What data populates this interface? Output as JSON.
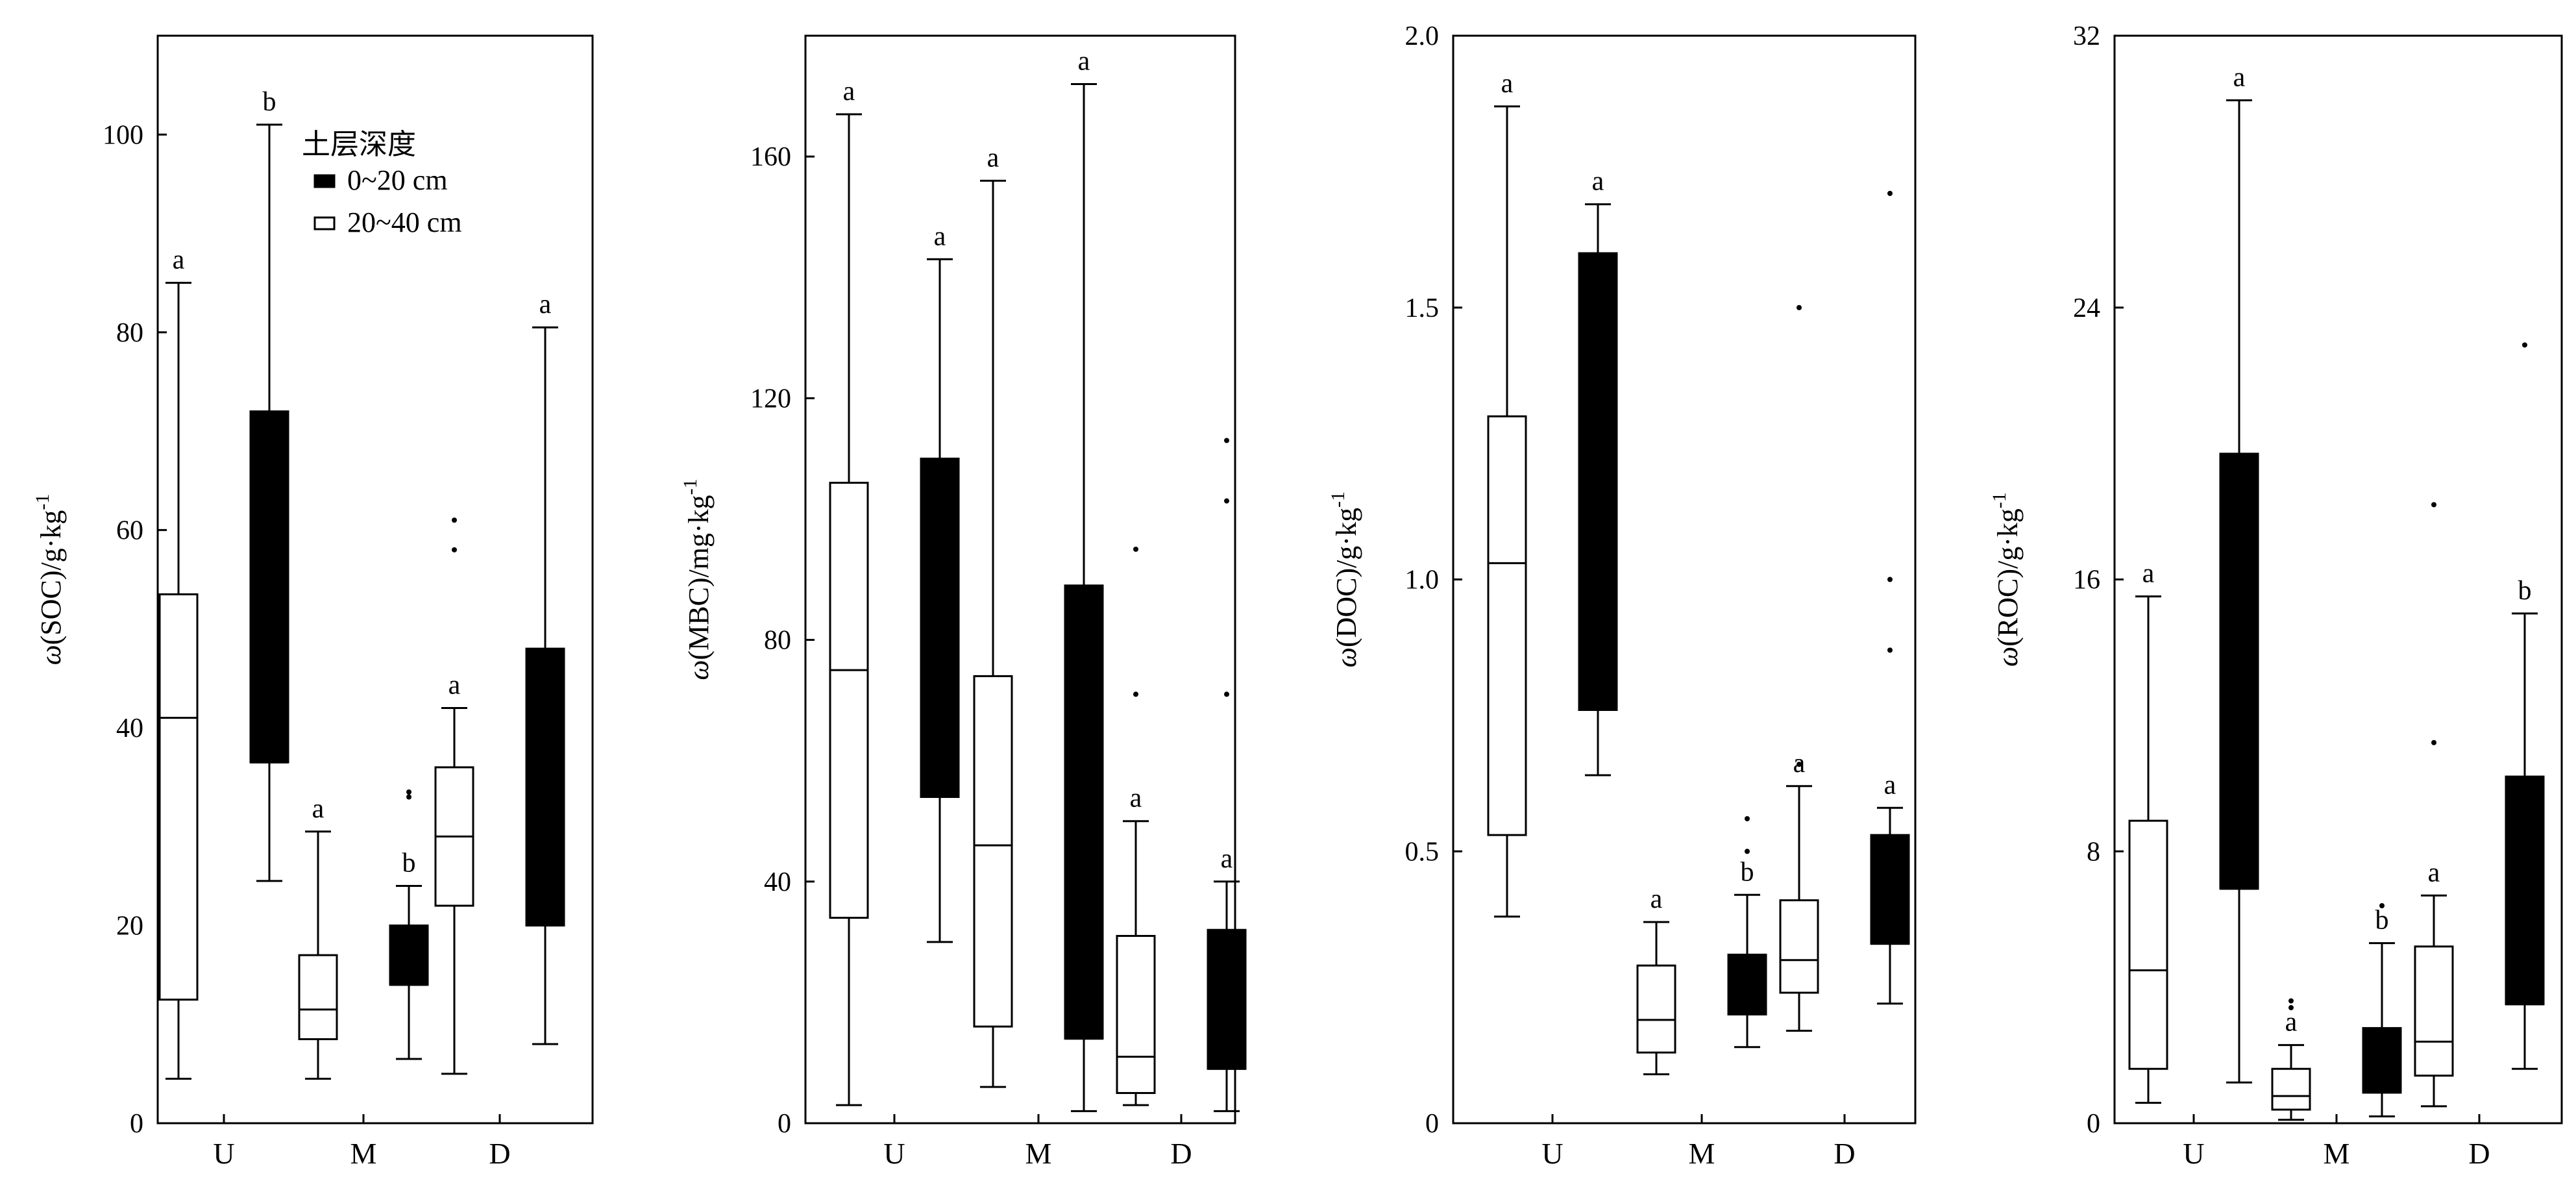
{
  "chart_data": [
    {
      "type": "box",
      "ylabel_var": "SOC",
      "ylabel_unit": "g·kg",
      "ylim": [
        0,
        110
      ],
      "yticks": [
        0,
        20,
        40,
        60,
        80,
        100
      ],
      "categories": [
        "U",
        "M",
        "D"
      ],
      "legend": {
        "title": "土层深度",
        "entries": [
          {
            "label": "0~20 cm",
            "fill": "#000000"
          },
          {
            "label": "20~40 cm",
            "fill": "#ffffff"
          }
        ],
        "placement": "top-left"
      },
      "boxes": [
        {
          "category": "U",
          "depth": "20~40 cm",
          "whisker_low": 4.5,
          "q1": 12.5,
          "median": 41,
          "q3": 53.5,
          "whisker_high": 85,
          "outliers": [],
          "letter": "a"
        },
        {
          "category": "U",
          "depth": "0~20 cm",
          "whisker_low": 24.5,
          "q1": 36.5,
          "median": 36.5,
          "q3": 72,
          "whisker_high": 101,
          "outliers": [],
          "letter": "b"
        },
        {
          "category": "M",
          "depth": "20~40 cm",
          "whisker_low": 4.5,
          "q1": 8.5,
          "median": 11.5,
          "q3": 17,
          "whisker_high": 29.5,
          "outliers": [],
          "letter": "a"
        },
        {
          "category": "M",
          "depth": "0~20 cm",
          "whisker_low": 6.5,
          "q1": 14,
          "median": 14,
          "q3": 20,
          "whisker_high": 24,
          "outliers": [
            33,
            33.5
          ],
          "letter": "b"
        },
        {
          "category": "D",
          "depth": "20~40 cm",
          "whisker_low": 5,
          "q1": 22,
          "median": 29,
          "q3": 36,
          "whisker_high": 42,
          "outliers": [
            58,
            61
          ],
          "letter": "a"
        },
        {
          "category": "D",
          "depth": "0~20 cm",
          "whisker_low": 8,
          "q1": 20,
          "median": 20,
          "q3": 48,
          "whisker_high": 80.5,
          "outliers": [],
          "letter": "a"
        }
      ]
    },
    {
      "type": "box",
      "ylabel_var": "MBC",
      "ylabel_unit": "mg·kg",
      "ylim": [
        0,
        180
      ],
      "yticks": [
        0,
        40,
        80,
        120,
        160
      ],
      "categories": [
        "U",
        "M",
        "D"
      ],
      "boxes": [
        {
          "category": "U",
          "depth": "20~40 cm",
          "whisker_low": 3,
          "q1": 34,
          "median": 75,
          "q3": 106,
          "whisker_high": 167,
          "outliers": [],
          "letter": "a"
        },
        {
          "category": "U",
          "depth": "0~20 cm",
          "whisker_low": 30,
          "q1": 54,
          "median": 54,
          "q3": 110,
          "whisker_high": 143,
          "outliers": [],
          "letter": "a"
        },
        {
          "category": "M",
          "depth": "20~40 cm",
          "whisker_low": 6,
          "q1": 16,
          "median": 46,
          "q3": 74,
          "whisker_high": 156,
          "outliers": [],
          "letter": "a"
        },
        {
          "category": "M",
          "depth": "0~20 cm",
          "whisker_low": 2,
          "q1": 14,
          "median": 14,
          "q3": 89,
          "whisker_high": 172,
          "outliers": [],
          "letter": "a"
        },
        {
          "category": "D",
          "depth": "20~40 cm",
          "whisker_low": 3,
          "q1": 5,
          "median": 11,
          "q3": 31,
          "whisker_high": 50,
          "outliers": [
            71,
            95
          ],
          "letter": "a"
        },
        {
          "category": "D",
          "depth": "0~20 cm",
          "whisker_low": 2,
          "q1": 9,
          "median": 9,
          "q3": 32,
          "whisker_high": 40,
          "outliers": [
            71,
            103,
            113
          ],
          "letter": "a"
        }
      ]
    },
    {
      "type": "box",
      "ylabel_var": "DOC",
      "ylabel_unit": "g·kg",
      "ylim": [
        0,
        2.0
      ],
      "yticks": [
        0,
        0.5,
        1.0,
        1.5,
        2.0
      ],
      "ytick_labels": [
        "0",
        "0.5",
        "1.0",
        "1.5",
        "2.0"
      ],
      "categories": [
        "U",
        "M",
        "D"
      ],
      "boxes": [
        {
          "category": "U",
          "depth": "20~40 cm",
          "whisker_low": 0.38,
          "q1": 0.53,
          "median": 1.03,
          "q3": 1.3,
          "whisker_high": 1.87,
          "outliers": [],
          "letter": "a"
        },
        {
          "category": "U",
          "depth": "0~20 cm",
          "whisker_low": 0.64,
          "q1": 0.76,
          "median": 0.76,
          "q3": 1.6,
          "whisker_high": 1.69,
          "outliers": [],
          "letter": "a"
        },
        {
          "category": "M",
          "depth": "20~40 cm",
          "whisker_low": 0.09,
          "q1": 0.13,
          "median": 0.19,
          "q3": 0.29,
          "whisker_high": 0.37,
          "outliers": [],
          "letter": "a"
        },
        {
          "category": "M",
          "depth": "0~20 cm",
          "whisker_low": 0.14,
          "q1": 0.2,
          "median": 0.2,
          "q3": 0.31,
          "whisker_high": 0.42,
          "outliers": [
            0.5,
            0.56
          ],
          "letter": "b"
        },
        {
          "category": "D",
          "depth": "20~40 cm",
          "whisker_low": 0.17,
          "q1": 0.24,
          "median": 0.3,
          "q3": 0.41,
          "whisker_high": 0.62,
          "outliers": [
            0.66,
            1.5
          ],
          "letter": "a"
        },
        {
          "category": "D",
          "depth": "0~20 cm",
          "whisker_low": 0.22,
          "q1": 0.33,
          "median": 0.33,
          "q3": 0.53,
          "whisker_high": 0.58,
          "outliers": [
            0.87,
            1.0,
            1.71
          ],
          "letter": "a"
        }
      ]
    },
    {
      "type": "box",
      "ylabel_var": "ROC",
      "ylabel_unit": "g·kg",
      "ylim": [
        0,
        32
      ],
      "yticks": [
        0,
        8,
        16,
        24,
        32
      ],
      "categories": [
        "U",
        "M",
        "D"
      ],
      "boxes": [
        {
          "category": "U",
          "depth": "20~40 cm",
          "whisker_low": 0.6,
          "q1": 1.6,
          "median": 4.5,
          "q3": 8.9,
          "whisker_high": 15.5,
          "outliers": [],
          "letter": "a"
        },
        {
          "category": "U",
          "depth": "0~20 cm",
          "whisker_low": 1.2,
          "q1": 6.9,
          "median": 6.9,
          "q3": 19.7,
          "whisker_high": 30.1,
          "outliers": [],
          "letter": "a"
        },
        {
          "category": "M",
          "depth": "20~40 cm",
          "whisker_low": 0.1,
          "q1": 0.4,
          "median": 0.8,
          "q3": 1.6,
          "whisker_high": 2.3,
          "outliers": [
            3.4,
            3.6
          ],
          "letter": "a"
        },
        {
          "category": "M",
          "depth": "0~20 cm",
          "whisker_low": 0.2,
          "q1": 0.9,
          "median": 0.9,
          "q3": 2.8,
          "whisker_high": 5.3,
          "outliers": [
            6.4
          ],
          "letter": "b"
        },
        {
          "category": "D",
          "depth": "20~40 cm",
          "whisker_low": 0.5,
          "q1": 1.4,
          "median": 2.4,
          "q3": 5.2,
          "whisker_high": 6.7,
          "outliers": [
            11.2,
            18.2
          ],
          "letter": "a"
        },
        {
          "category": "D",
          "depth": "0~20 cm",
          "whisker_low": 1.6,
          "q1": 3.5,
          "median": 3.5,
          "q3": 10.2,
          "whisker_high": 15.0,
          "outliers": [
            22.9
          ],
          "letter": "b"
        }
      ]
    }
  ],
  "labels": {
    "omega": "ω",
    "exponent": "-1"
  }
}
